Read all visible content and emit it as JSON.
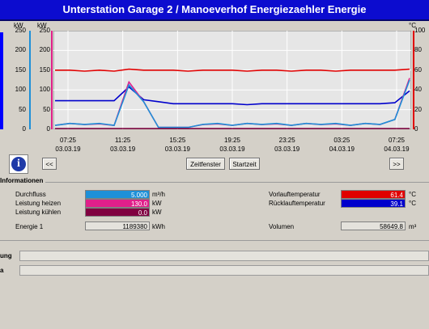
{
  "window": {
    "title": "Unterstation Garage 2 / Manoeverhof Energiezaehler Energie"
  },
  "axes": {
    "left1_unit": "kW",
    "left2_unit": "kW",
    "right1_unit": "m³/h",
    "right2_unit": "°C",
    "left1_ticks": [
      "250",
      "200",
      "150",
      "100",
      "50",
      "0"
    ],
    "left2_ticks": [
      "250",
      "200",
      "150",
      "100",
      "50",
      "0"
    ],
    "right1_ticks": [
      "10",
      "8",
      "6",
      "4",
      "2",
      "0"
    ],
    "right2_ticks": [
      "100",
      "80",
      "60",
      "40",
      "20",
      "0"
    ]
  },
  "time_labels": [
    {
      "time": "07:25",
      "date": "03.03.19"
    },
    {
      "time": "11:25",
      "date": "03.03.19"
    },
    {
      "time": "15:25",
      "date": "03.03.19"
    },
    {
      "time": "19:25",
      "date": "03.03.19"
    },
    {
      "time": "23:25",
      "date": "03.03.19"
    },
    {
      "time": "03:25",
      "date": "04.03.19"
    },
    {
      "time": "07:25",
      "date": "04.03.19"
    }
  ],
  "buttons": {
    "prev": "<<",
    "zeitfenster": "Zeitfenster",
    "startzeit": "Startzeit",
    "next": ">>",
    "info": "i"
  },
  "info": {
    "title": "Informationen",
    "durchfluss_label": "Durchfluss",
    "durchfluss_value": "5.000",
    "durchfluss_unit": "m³/h",
    "leistung_heizen_label": "Leistung heizen",
    "leistung_heizen_value": "130.0",
    "leistung_heizen_unit": "kW",
    "leistung_kuehlen_label": "Leistung kühlen",
    "leistung_kuehlen_value": "0.0",
    "leistung_kuehlen_unit": "kW",
    "energie_label": "Energie 1",
    "energie_value": "1189380",
    "energie_unit": "kWh",
    "vorlauf_label": "Vorlauftemperatur",
    "vorlauf_value": "61.4",
    "vorlauf_unit": "°C",
    "ruecklauf_label": "Rücklauftemperatur",
    "ruecklauf_value": "39.1",
    "ruecklauf_unit": "°C",
    "volumen_label": "Volumen",
    "volumen_value": "58649.8",
    "volumen_unit": "m³"
  },
  "bottom": {
    "row1_label": "ung",
    "row2_label": "a"
  },
  "colors": {
    "title_bg": "#0c0ccf",
    "flow": "#1e90d8",
    "heat": "#e0208a",
    "cool": "#800040",
    "vorlauf": "#e00000",
    "ruecklauf": "#0000cc"
  },
  "chart_data": {
    "type": "line",
    "x": [
      "07:25",
      "08:25",
      "09:25",
      "10:25",
      "11:25",
      "12:25",
      "13:25",
      "14:25",
      "15:25",
      "16:25",
      "17:25",
      "18:25",
      "19:25",
      "20:25",
      "21:25",
      "22:25",
      "23:25",
      "00:25",
      "01:25",
      "02:25",
      "03:25",
      "04:25",
      "05:25",
      "06:25",
      "07:25"
    ],
    "series": [
      {
        "name": "Vorlauftemperatur",
        "unit": "°C",
        "values": [
          60,
          60,
          59,
          60,
          59,
          61,
          60,
          60,
          60,
          59,
          60,
          60,
          60,
          59,
          60,
          60,
          59,
          60,
          60,
          59,
          60,
          60,
          60,
          60,
          61
        ]
      },
      {
        "name": "Rücklauftemperatur",
        "unit": "°C",
        "values": [
          29,
          29,
          29,
          29,
          29,
          43,
          30,
          28,
          26,
          26,
          26,
          26,
          26,
          25,
          26,
          26,
          26,
          26,
          26,
          26,
          26,
          26,
          26,
          27,
          39
        ]
      },
      {
        "name": "Leistung heizen",
        "unit": "kW",
        "values": [
          10,
          15,
          12,
          14,
          10,
          120,
          70,
          5,
          5,
          5,
          12,
          14,
          10,
          15,
          12,
          14,
          10,
          15,
          12,
          14,
          10,
          15,
          12,
          25,
          130
        ]
      },
      {
        "name": "Durchfluss",
        "unit": "m³/h",
        "values": [
          0.4,
          0.6,
          0.5,
          0.6,
          0.4,
          4.5,
          2.8,
          0.2,
          0.2,
          0.2,
          0.5,
          0.6,
          0.4,
          0.6,
          0.5,
          0.6,
          0.4,
          0.6,
          0.5,
          0.6,
          0.4,
          0.6,
          0.5,
          1.0,
          5.0
        ]
      },
      {
        "name": "Leistung kühlen",
        "unit": "kW",
        "values": [
          0,
          0,
          0,
          0,
          0,
          0,
          0,
          0,
          0,
          0,
          0,
          0,
          0,
          0,
          0,
          0,
          0,
          0,
          0,
          0,
          0,
          0,
          0,
          0,
          0
        ]
      }
    ],
    "ylim_left": [
      0,
      250
    ],
    "ylim_flow": [
      0,
      10
    ],
    "ylim_temp": [
      0,
      100
    ],
    "grid": true
  }
}
